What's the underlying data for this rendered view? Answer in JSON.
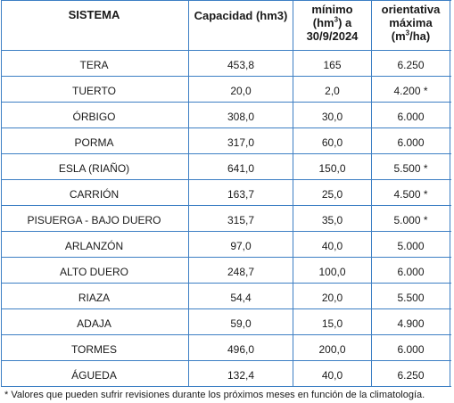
{
  "table": {
    "headers": {
      "sistema": "SISTEMA",
      "capacidad": "Capacidad (hm3)",
      "minimo_line1": "mínimo",
      "minimo_line2_pre": "(hm",
      "minimo_line2_sup": "3",
      "minimo_line2_post": ") a",
      "minimo_line3": "30/9/2024",
      "orient_line1": "orientativa",
      "orient_line2": "máxima",
      "orient_line3_pre": "(m",
      "orient_line3_sup": "3",
      "orient_line3_post": "/ha)"
    },
    "rows": [
      {
        "sistema": "TERA",
        "capacidad": "453,8",
        "minimo": "165",
        "maxima": "6.250"
      },
      {
        "sistema": "TUERTO",
        "capacidad": "20,0",
        "minimo": "2,0",
        "maxima": "4.200 *"
      },
      {
        "sistema": "ÓRBIGO",
        "capacidad": "308,0",
        "minimo": "30,0",
        "maxima": "6.000"
      },
      {
        "sistema": "PORMA",
        "capacidad": "317,0",
        "minimo": "60,0",
        "maxima": "6.000"
      },
      {
        "sistema": "ESLA (RIAÑO)",
        "capacidad": "641,0",
        "minimo": "150,0",
        "maxima": "5.500 *"
      },
      {
        "sistema": "CARRIÓN",
        "capacidad": "163,7",
        "minimo": "25,0",
        "maxima": "4.500 *"
      },
      {
        "sistema": "PISUERGA - BAJO DUERO",
        "capacidad": "315,7",
        "minimo": "35,0",
        "maxima": "5.000 *"
      },
      {
        "sistema": "ARLANZÓN",
        "capacidad": "97,0",
        "minimo": "40,0",
        "maxima": "5.000"
      },
      {
        "sistema": "ALTO DUERO",
        "capacidad": "248,7",
        "minimo": "100,0",
        "maxima": "6.000"
      },
      {
        "sistema": "RIAZA",
        "capacidad": "54,4",
        "minimo": "20,0",
        "maxima": "5.500"
      },
      {
        "sistema": "ADAJA",
        "capacidad": "59,0",
        "minimo": "15,0",
        "maxima": "4.900"
      },
      {
        "sistema": "TORMES",
        "capacidad": "496,0",
        "minimo": "200,0",
        "maxima": "6.000"
      },
      {
        "sistema": "ÁGUEDA",
        "capacidad": "132,4",
        "minimo": "40,0",
        "maxima": "6.250"
      }
    ]
  },
  "footnote": "* Valores que pueden sufrir revisiones durante los próximos meses en función de la climatología.",
  "colors": {
    "grid": "#3d7fc4",
    "text": "#1a1a1a"
  }
}
